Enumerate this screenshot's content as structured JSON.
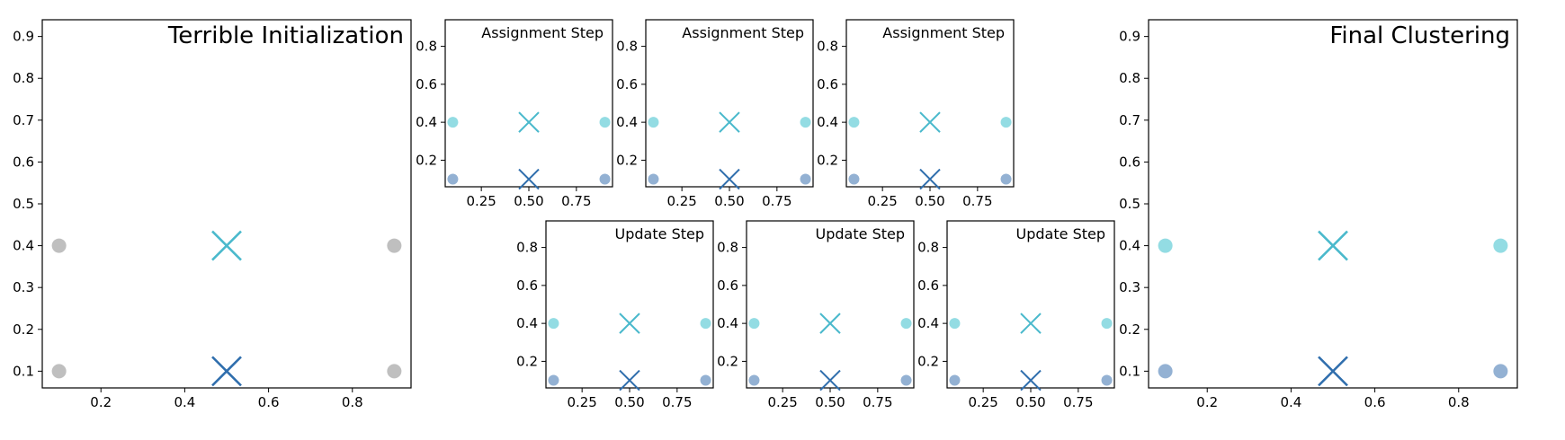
{
  "colors": {
    "background": "#ffffff",
    "unassigned_point": "#a9a9a9",
    "cluster_cyan": "#6fd0da",
    "cluster_blue": "#6f97c4",
    "centroid_cyan": "#4ab9cc",
    "centroid_blue": "#2f6ead",
    "axis": "#000000"
  },
  "chart_data": [
    {
      "type": "scatter",
      "title": "Terrible Initialization",
      "title_position": "top-right",
      "xlabel": "",
      "ylabel": "",
      "xlim": [
        0.06,
        0.94
      ],
      "ylim": [
        0.06,
        0.94
      ],
      "xticks": [
        "0.2",
        "0.4",
        "0.6",
        "0.8"
      ],
      "yticks": [
        "0.1",
        "0.2",
        "0.3",
        "0.4",
        "0.5",
        "0.6",
        "0.7",
        "0.8",
        "0.9"
      ],
      "grid": false,
      "series": [
        {
          "marker": "circle",
          "color_key": "unassigned_point",
          "points": [
            [
              0.1,
              0.4
            ],
            [
              0.9,
              0.4
            ],
            [
              0.1,
              0.1
            ],
            [
              0.9,
              0.1
            ]
          ]
        },
        {
          "marker": "x",
          "color_key": "centroid_cyan",
          "points": [
            [
              0.5,
              0.4
            ]
          ]
        },
        {
          "marker": "x",
          "color_key": "centroid_blue",
          "points": [
            [
              0.5,
              0.1
            ]
          ]
        }
      ]
    },
    {
      "type": "scatter",
      "title": "Assignment Step",
      "xlim": [
        0.06,
        0.94
      ],
      "ylim": [
        0.06,
        0.94
      ],
      "xticks": [
        "0.25",
        "0.50",
        "0.75"
      ],
      "yticks": [
        "0.2",
        "0.4",
        "0.6",
        "0.8"
      ],
      "grid": false,
      "series": [
        {
          "marker": "circle",
          "color_key": "cluster_cyan",
          "points": [
            [
              0.1,
              0.4
            ],
            [
              0.9,
              0.4
            ]
          ]
        },
        {
          "marker": "circle",
          "color_key": "cluster_blue",
          "points": [
            [
              0.1,
              0.1
            ],
            [
              0.9,
              0.1
            ]
          ]
        },
        {
          "marker": "x",
          "color_key": "centroid_cyan",
          "points": [
            [
              0.5,
              0.4
            ]
          ]
        },
        {
          "marker": "x",
          "color_key": "centroid_blue",
          "points": [
            [
              0.5,
              0.1
            ]
          ]
        }
      ]
    },
    {
      "type": "scatter",
      "title": "Assignment Step",
      "xlim": [
        0.06,
        0.94
      ],
      "ylim": [
        0.06,
        0.94
      ],
      "xticks": [
        "0.25",
        "0.50",
        "0.75"
      ],
      "yticks": [
        "0.2",
        "0.4",
        "0.6",
        "0.8"
      ],
      "grid": false,
      "series": [
        {
          "marker": "circle",
          "color_key": "cluster_cyan",
          "points": [
            [
              0.1,
              0.4
            ],
            [
              0.9,
              0.4
            ]
          ]
        },
        {
          "marker": "circle",
          "color_key": "cluster_blue",
          "points": [
            [
              0.1,
              0.1
            ],
            [
              0.9,
              0.1
            ]
          ]
        },
        {
          "marker": "x",
          "color_key": "centroid_cyan",
          "points": [
            [
              0.5,
              0.4
            ]
          ]
        },
        {
          "marker": "x",
          "color_key": "centroid_blue",
          "points": [
            [
              0.5,
              0.1
            ]
          ]
        }
      ]
    },
    {
      "type": "scatter",
      "title": "Assignment Step",
      "xlim": [
        0.06,
        0.94
      ],
      "ylim": [
        0.06,
        0.94
      ],
      "xticks": [
        "0.25",
        "0.50",
        "0.75"
      ],
      "yticks": [
        "0.2",
        "0.4",
        "0.6",
        "0.8"
      ],
      "grid": false,
      "series": [
        {
          "marker": "circle",
          "color_key": "cluster_cyan",
          "points": [
            [
              0.1,
              0.4
            ],
            [
              0.9,
              0.4
            ]
          ]
        },
        {
          "marker": "circle",
          "color_key": "cluster_blue",
          "points": [
            [
              0.1,
              0.1
            ],
            [
              0.9,
              0.1
            ]
          ]
        },
        {
          "marker": "x",
          "color_key": "centroid_cyan",
          "points": [
            [
              0.5,
              0.4
            ]
          ]
        },
        {
          "marker": "x",
          "color_key": "centroid_blue",
          "points": [
            [
              0.5,
              0.1
            ]
          ]
        }
      ]
    },
    {
      "type": "scatter",
      "title": "Update Step",
      "xlim": [
        0.06,
        0.94
      ],
      "ylim": [
        0.06,
        0.94
      ],
      "xticks": [
        "0.25",
        "0.50",
        "0.75"
      ],
      "yticks": [
        "0.2",
        "0.4",
        "0.6",
        "0.8"
      ],
      "grid": false,
      "series": [
        {
          "marker": "circle",
          "color_key": "cluster_cyan",
          "points": [
            [
              0.1,
              0.4
            ],
            [
              0.9,
              0.4
            ]
          ]
        },
        {
          "marker": "circle",
          "color_key": "cluster_blue",
          "points": [
            [
              0.1,
              0.1
            ],
            [
              0.9,
              0.1
            ]
          ]
        },
        {
          "marker": "x",
          "color_key": "centroid_cyan",
          "points": [
            [
              0.5,
              0.4
            ]
          ]
        },
        {
          "marker": "x",
          "color_key": "centroid_blue",
          "points": [
            [
              0.5,
              0.1
            ]
          ]
        }
      ]
    },
    {
      "type": "scatter",
      "title": "Update Step",
      "xlim": [
        0.06,
        0.94
      ],
      "ylim": [
        0.06,
        0.94
      ],
      "xticks": [
        "0.25",
        "0.50",
        "0.75"
      ],
      "yticks": [
        "0.2",
        "0.4",
        "0.6",
        "0.8"
      ],
      "grid": false,
      "series": [
        {
          "marker": "circle",
          "color_key": "cluster_cyan",
          "points": [
            [
              0.1,
              0.4
            ],
            [
              0.9,
              0.4
            ]
          ]
        },
        {
          "marker": "circle",
          "color_key": "cluster_blue",
          "points": [
            [
              0.1,
              0.1
            ],
            [
              0.9,
              0.1
            ]
          ]
        },
        {
          "marker": "x",
          "color_key": "centroid_cyan",
          "points": [
            [
              0.5,
              0.4
            ]
          ]
        },
        {
          "marker": "x",
          "color_key": "centroid_blue",
          "points": [
            [
              0.5,
              0.1
            ]
          ]
        }
      ]
    },
    {
      "type": "scatter",
      "title": "Update Step",
      "xlim": [
        0.06,
        0.94
      ],
      "ylim": [
        0.06,
        0.94
      ],
      "xticks": [
        "0.25",
        "0.50",
        "0.75"
      ],
      "yticks": [
        "0.2",
        "0.4",
        "0.6",
        "0.8"
      ],
      "grid": false,
      "series": [
        {
          "marker": "circle",
          "color_key": "cluster_cyan",
          "points": [
            [
              0.1,
              0.4
            ],
            [
              0.9,
              0.4
            ]
          ]
        },
        {
          "marker": "circle",
          "color_key": "cluster_blue",
          "points": [
            [
              0.1,
              0.1
            ],
            [
              0.9,
              0.1
            ]
          ]
        },
        {
          "marker": "x",
          "color_key": "centroid_cyan",
          "points": [
            [
              0.5,
              0.4
            ]
          ]
        },
        {
          "marker": "x",
          "color_key": "centroid_blue",
          "points": [
            [
              0.5,
              0.1
            ]
          ]
        }
      ]
    },
    {
      "type": "scatter",
      "title": "Final Clustering",
      "title_position": "top-right",
      "xlim": [
        0.06,
        0.94
      ],
      "ylim": [
        0.06,
        0.94
      ],
      "xticks": [
        "0.2",
        "0.4",
        "0.6",
        "0.8"
      ],
      "yticks": [
        "0.1",
        "0.2",
        "0.3",
        "0.4",
        "0.5",
        "0.6",
        "0.7",
        "0.8",
        "0.9"
      ],
      "grid": false,
      "series": [
        {
          "marker": "circle",
          "color_key": "cluster_cyan",
          "points": [
            [
              0.1,
              0.4
            ],
            [
              0.9,
              0.4
            ]
          ]
        },
        {
          "marker": "circle",
          "color_key": "cluster_blue",
          "points": [
            [
              0.1,
              0.1
            ],
            [
              0.9,
              0.1
            ]
          ]
        },
        {
          "marker": "x",
          "color_key": "centroid_cyan",
          "points": [
            [
              0.5,
              0.4
            ]
          ]
        },
        {
          "marker": "x",
          "color_key": "centroid_blue",
          "points": [
            [
              0.5,
              0.1
            ]
          ]
        }
      ]
    }
  ]
}
